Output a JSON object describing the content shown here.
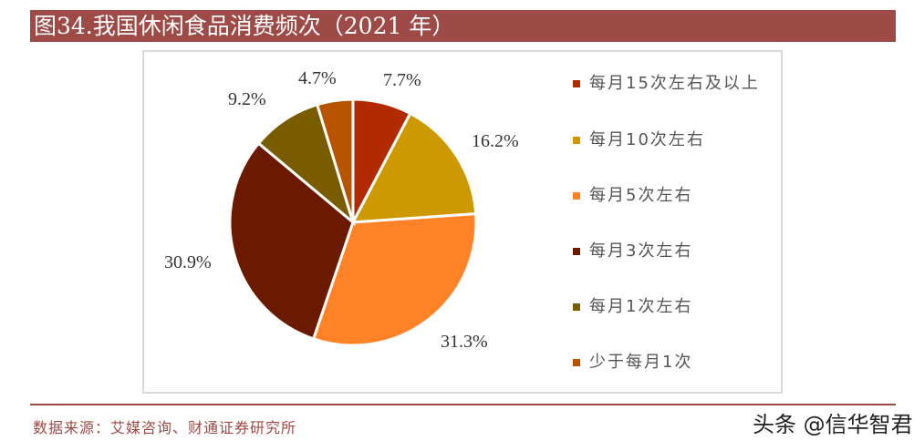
{
  "title": "图34.我国休闲食品消费频次（2021 年）",
  "source": "数据来源：艾媒咨询、财通证券研究所",
  "watermark": "头条 @信华智君",
  "colors": {
    "title_bar": "#9e4a46",
    "source_text": "#9e4a46"
  },
  "chart_data": {
    "type": "pie",
    "title": "图34.我国休闲食品消费频次（2021 年）",
    "categories": [
      "每月15次左右及以上",
      "每月10次左右",
      "每月5次左右",
      "每月3次左右",
      "每月1次左右",
      "少于每月1次"
    ],
    "values": [
      7.7,
      16.2,
      31.3,
      30.9,
      9.2,
      4.7
    ],
    "labels": [
      "7.7%",
      "16.2%",
      "31.3%",
      "30.9%",
      "9.2%",
      "4.7%"
    ],
    "colors": [
      "#b22a00",
      "#cc9a00",
      "#ff8226",
      "#6b1a00",
      "#7a5c00",
      "#b85400"
    ],
    "unit": "%",
    "start_angle": "12 o'clock, clockwise",
    "legend_position": "right"
  },
  "legend": [
    {
      "label": "每月15次左右及以上",
      "color": "#b22a00"
    },
    {
      "label": "每月10次左右",
      "color": "#cc9a00"
    },
    {
      "label": "每月5次左右",
      "color": "#ff8226"
    },
    {
      "label": "每月3次左右",
      "color": "#6b1a00"
    },
    {
      "label": "每月1次左右",
      "color": "#7a5c00"
    },
    {
      "label": "少于每月1次",
      "color": "#b85400"
    }
  ]
}
